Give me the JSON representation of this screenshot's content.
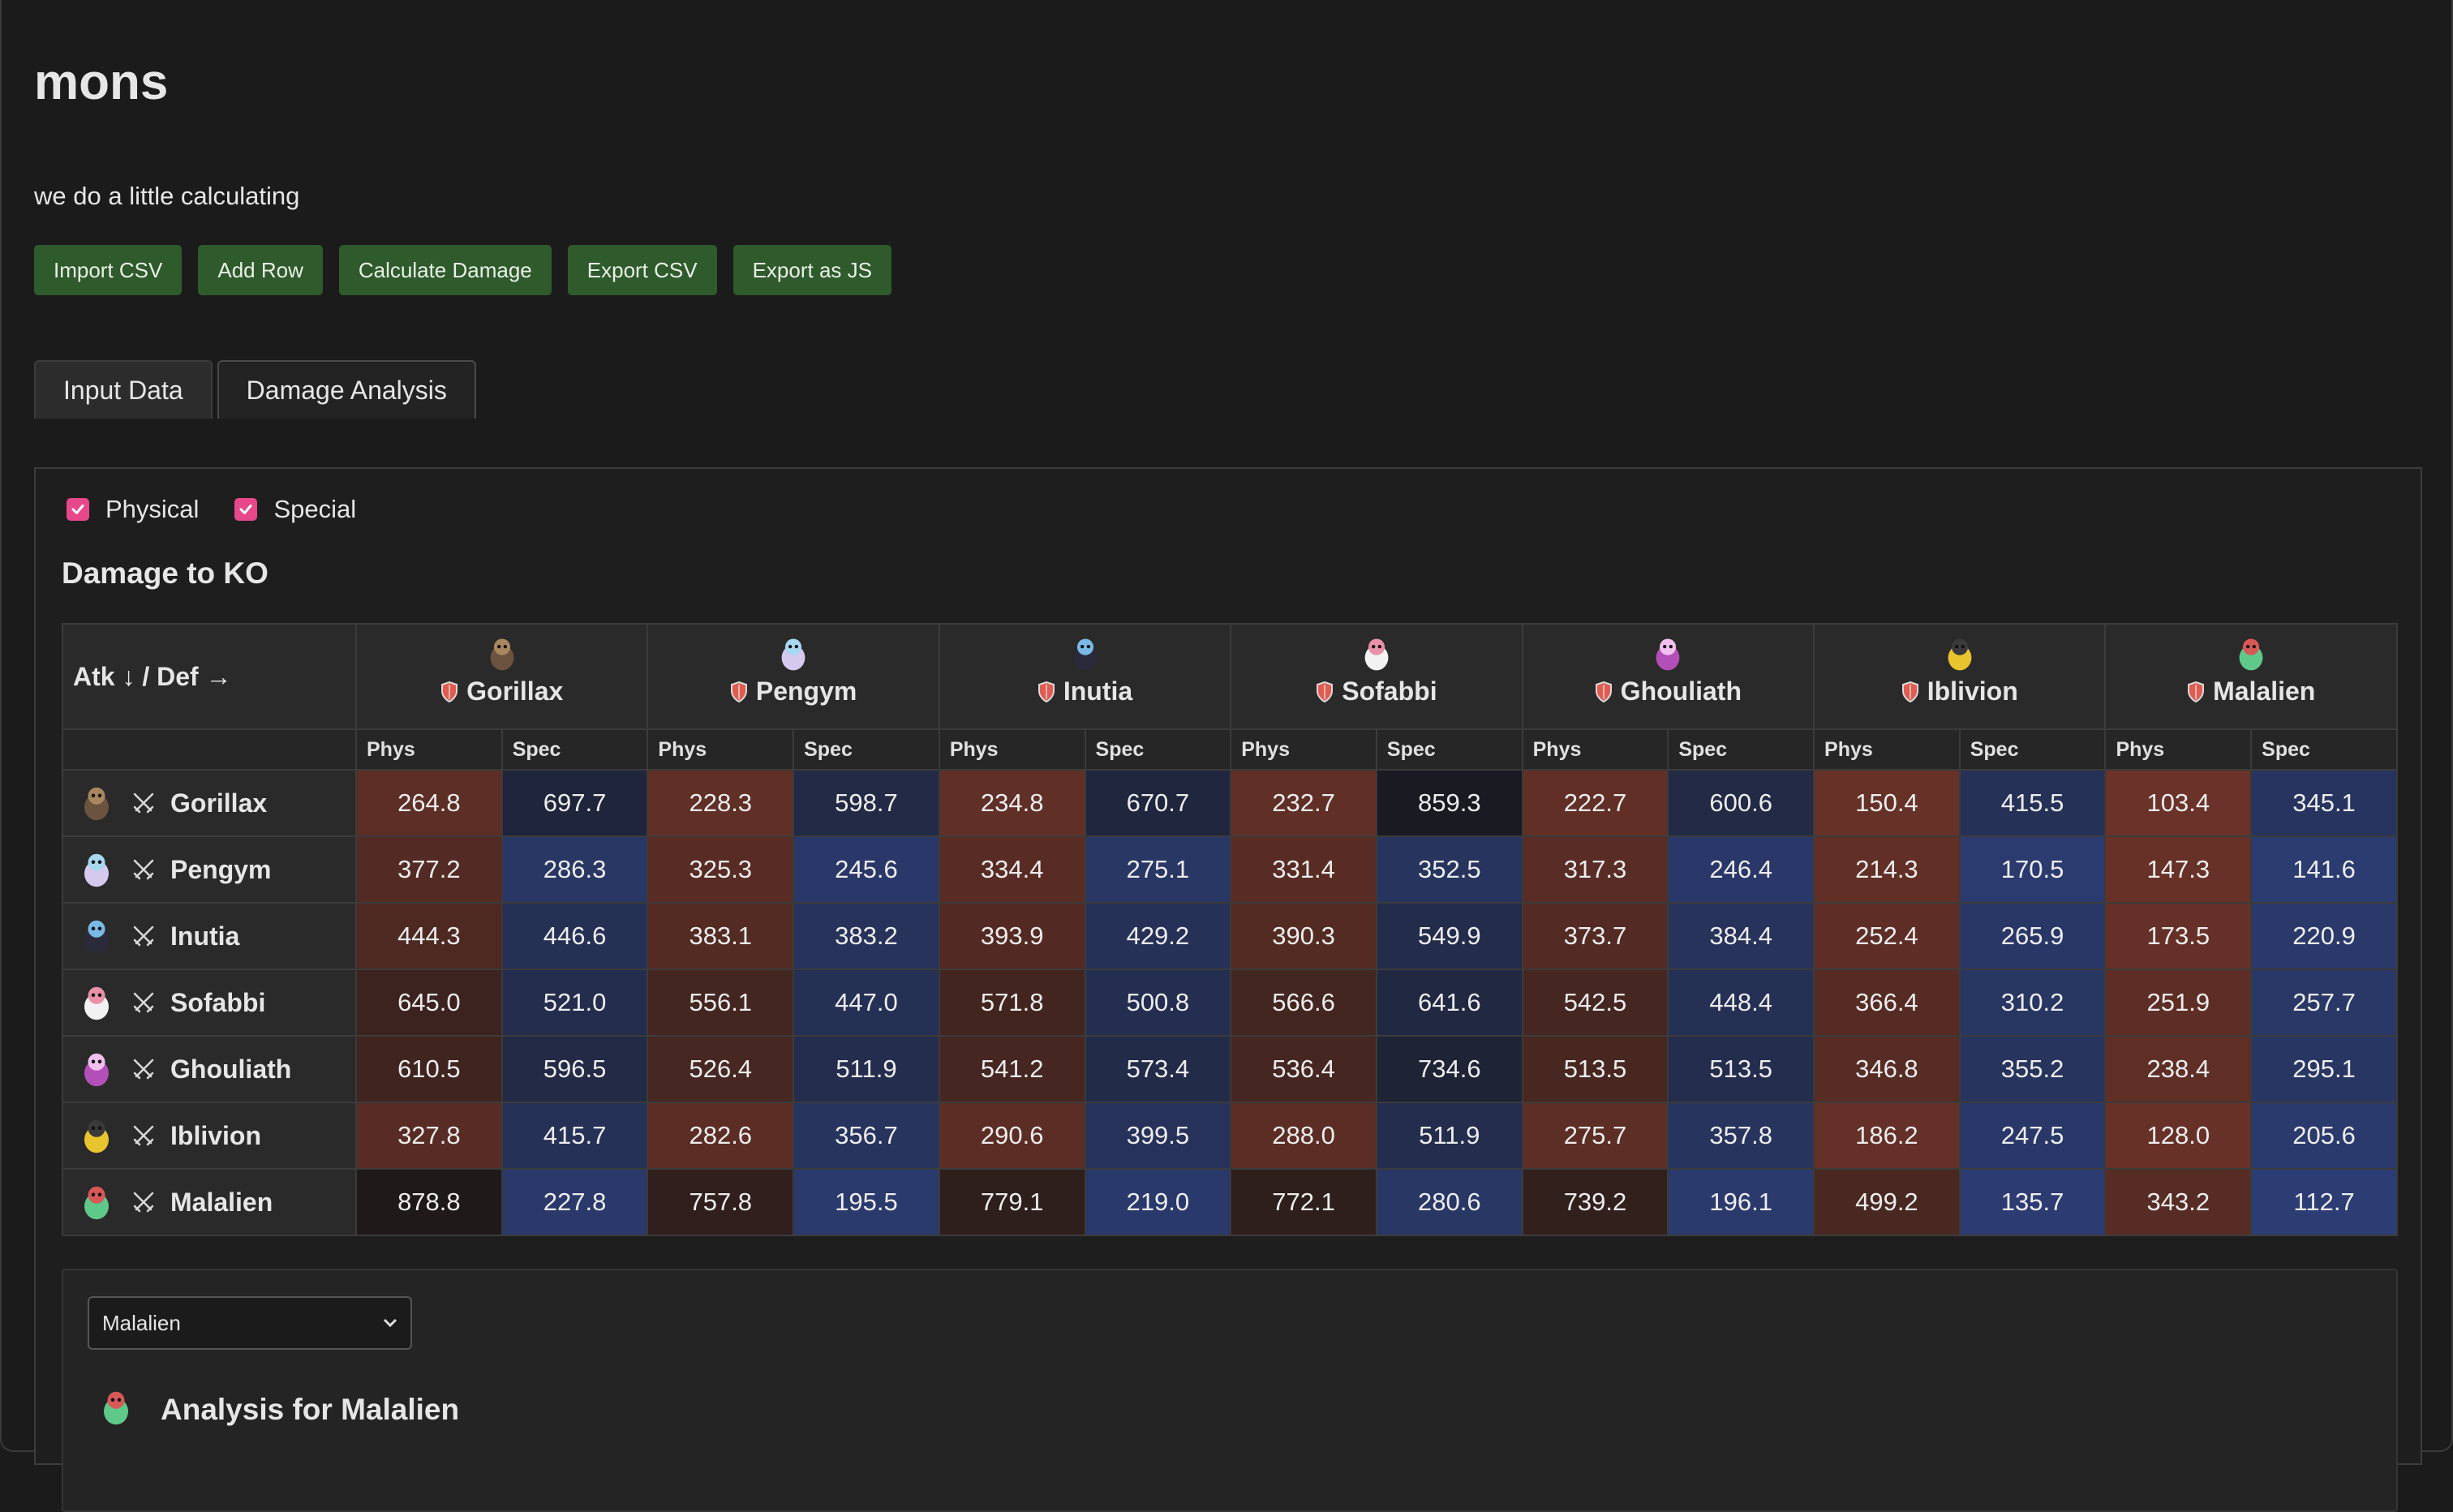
{
  "app": {
    "title": "mons",
    "subtitle": "we do a little calculating"
  },
  "toolbar": {
    "import_csv": "Import CSV",
    "add_row": "Add Row",
    "calculate_damage": "Calculate Damage",
    "export_csv": "Export CSV",
    "export_js": "Export as JS"
  },
  "tabs": [
    {
      "label": "Input Data",
      "active": false
    },
    {
      "label": "Damage Analysis",
      "active": true
    }
  ],
  "filters": {
    "physical": {
      "label": "Physical",
      "checked": true
    },
    "special": {
      "label": "Special",
      "checked": true
    }
  },
  "section_title": "Damage to KO",
  "matrix": {
    "corner_label": "Atk ↓ / Def →",
    "phys_label": "Phys",
    "spec_label": "Spec",
    "defender_icon": "shield-icon",
    "attacker_icon": "crossed-swords-icon",
    "mons": [
      "Gorillax",
      "Pengym",
      "Inutia",
      "Sofabbi",
      "Ghouliath",
      "Iblivion",
      "Malalien"
    ],
    "rows": [
      {
        "attacker": "Gorillax",
        "values": [
          [
            264.8,
            697.7
          ],
          [
            228.3,
            598.7
          ],
          [
            234.8,
            670.7
          ],
          [
            232.7,
            859.3
          ],
          [
            222.7,
            600.6
          ],
          [
            150.4,
            415.5
          ],
          [
            103.4,
            345.1
          ]
        ]
      },
      {
        "attacker": "Pengym",
        "values": [
          [
            377.2,
            286.3
          ],
          [
            325.3,
            245.6
          ],
          [
            334.4,
            275.1
          ],
          [
            331.4,
            352.5
          ],
          [
            317.3,
            246.4
          ],
          [
            214.3,
            170.5
          ],
          [
            147.3,
            141.6
          ]
        ]
      },
      {
        "attacker": "Inutia",
        "values": [
          [
            444.3,
            446.6
          ],
          [
            383.1,
            383.2
          ],
          [
            393.9,
            429.2
          ],
          [
            390.3,
            549.9
          ],
          [
            373.7,
            384.4
          ],
          [
            252.4,
            265.9
          ],
          [
            173.5,
            220.9
          ]
        ]
      },
      {
        "attacker": "Sofabbi",
        "values": [
          [
            645.0,
            521.0
          ],
          [
            556.1,
            447.0
          ],
          [
            571.8,
            500.8
          ],
          [
            566.6,
            641.6
          ],
          [
            542.5,
            448.4
          ],
          [
            366.4,
            310.2
          ],
          [
            251.9,
            257.7
          ]
        ]
      },
      {
        "attacker": "Ghouliath",
        "values": [
          [
            610.5,
            596.5
          ],
          [
            526.4,
            511.9
          ],
          [
            541.2,
            573.4
          ],
          [
            536.4,
            734.6
          ],
          [
            513.5,
            513.5
          ],
          [
            346.8,
            355.2
          ],
          [
            238.4,
            295.1
          ]
        ]
      },
      {
        "attacker": "Iblivion",
        "values": [
          [
            327.8,
            415.7
          ],
          [
            282.6,
            356.7
          ],
          [
            290.6,
            399.5
          ],
          [
            288.0,
            511.9
          ],
          [
            275.7,
            357.8
          ],
          [
            186.2,
            247.5
          ],
          [
            128.0,
            205.6
          ]
        ]
      },
      {
        "attacker": "Malalien",
        "values": [
          [
            878.8,
            227.8
          ],
          [
            757.8,
            195.5
          ],
          [
            779.1,
            219.0
          ],
          [
            772.1,
            280.6
          ],
          [
            739.2,
            196.1
          ],
          [
            499.2,
            135.7
          ],
          [
            343.2,
            112.7
          ]
        ]
      }
    ]
  },
  "analysis": {
    "selected": "Malalien",
    "title": "Analysis for Malalien"
  },
  "colors": {
    "phys_high": "#6a3228",
    "phys_low": "#1f1a19",
    "spec_high": "#2c3d74",
    "spec_low": "#1a1b22",
    "button_bg": "#2f5a2c",
    "checkbox": "#e7488b"
  }
}
